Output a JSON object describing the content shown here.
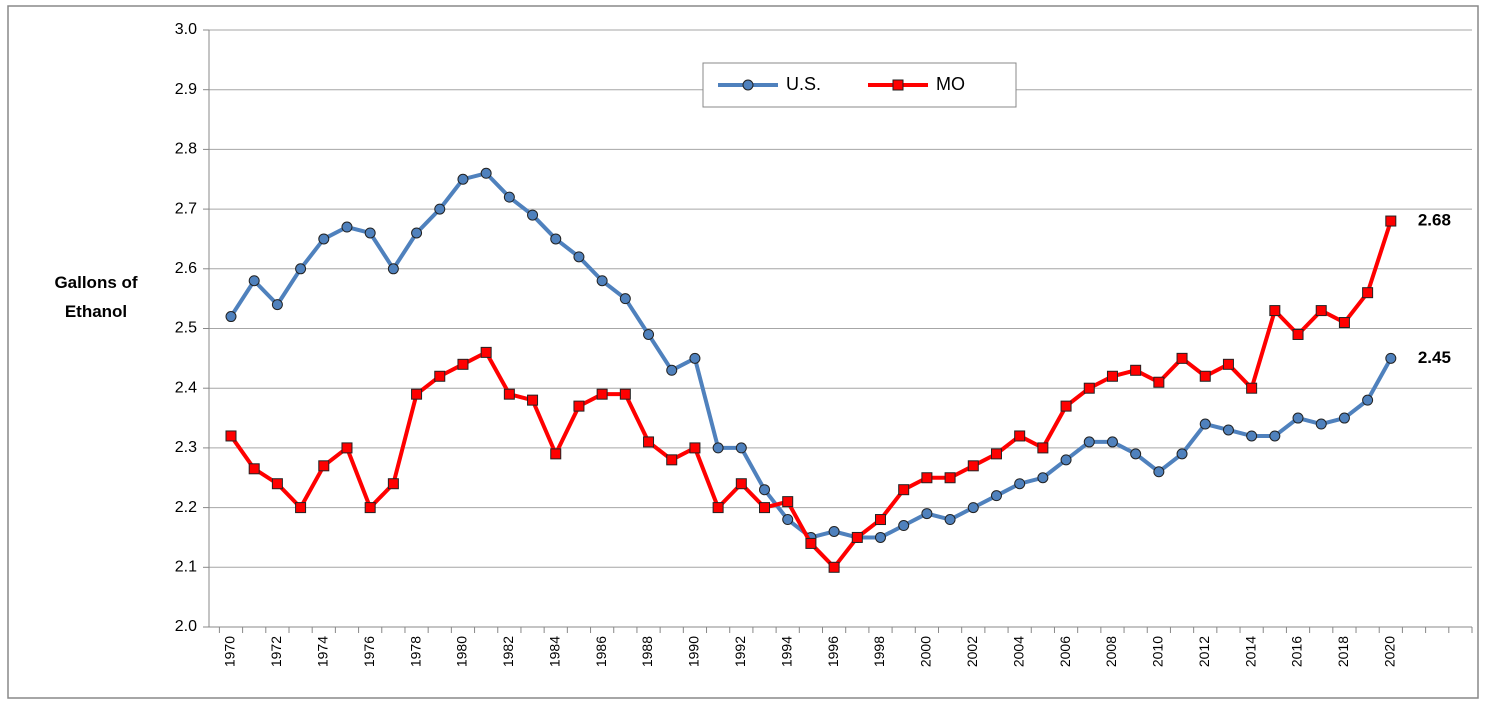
{
  "chart_data": {
    "type": "line",
    "y_label": "Gallons of Ethanol",
    "categories": [
      "1970",
      null,
      "1972",
      null,
      "1974",
      null,
      "1976",
      null,
      "1978",
      null,
      "1980",
      null,
      "1982",
      null,
      "1984",
      null,
      "1986",
      null,
      "1988",
      null,
      "1990",
      null,
      "1992",
      null,
      "1994",
      null,
      "1996",
      null,
      "1998",
      null,
      "2000",
      null,
      "2002",
      null,
      "2004",
      null,
      "2006",
      null,
      "2008",
      null,
      "2010",
      null,
      "2012",
      null,
      "2014",
      null,
      "2016",
      null,
      "2018",
      null,
      "2020",
      null,
      null,
      null
    ],
    "series": [
      {
        "name": "U.S.",
        "color": "#4f81bd",
        "marker": "circle",
        "values": [
          2.52,
          2.58,
          2.54,
          2.6,
          2.65,
          2.67,
          2.66,
          2.6,
          2.66,
          2.7,
          2.75,
          2.76,
          2.72,
          2.69,
          2.65,
          2.62,
          2.58,
          2.55,
          2.49,
          2.43,
          2.45,
          2.3,
          2.3,
          2.23,
          2.18,
          2.15,
          2.16,
          2.15,
          2.15,
          2.17,
          2.19,
          2.18,
          2.2,
          2.22,
          2.24,
          2.25,
          2.28,
          2.31,
          2.31,
          2.29,
          2.26,
          2.29,
          2.34,
          2.33,
          2.32,
          2.32,
          2.35,
          2.34,
          2.35,
          2.38,
          2.45,
          null,
          null,
          null
        ]
      },
      {
        "name": "MO",
        "color": "#ff0000",
        "marker": "square",
        "values": [
          2.32,
          2.265,
          2.24,
          2.2,
          2.27,
          2.3,
          2.2,
          2.24,
          2.39,
          2.42,
          2.44,
          2.46,
          2.39,
          2.38,
          2.29,
          2.37,
          2.39,
          2.39,
          2.31,
          2.28,
          2.3,
          2.2,
          2.24,
          2.2,
          2.21,
          2.14,
          2.1,
          2.15,
          2.18,
          2.23,
          2.25,
          2.25,
          2.27,
          2.29,
          2.32,
          2.3,
          2.37,
          2.4,
          2.42,
          2.43,
          2.41,
          2.45,
          2.42,
          2.44,
          2.4,
          2.53,
          2.49,
          2.53,
          2.51,
          2.56,
          2.68,
          null,
          null,
          null
        ]
      }
    ],
    "ylim": [
      2.0,
      3.0
    ],
    "yticks": [
      {
        "value": 2,
        "label": "2.0"
      },
      2.1,
      2.2,
      2.3,
      2.4,
      2.5,
      2.6,
      2.7,
      2.8,
      2.9,
      {
        "value": 3,
        "label": "3.0"
      }
    ],
    "grid": true,
    "legend": "top",
    "end_labels": [
      50
    ]
  }
}
